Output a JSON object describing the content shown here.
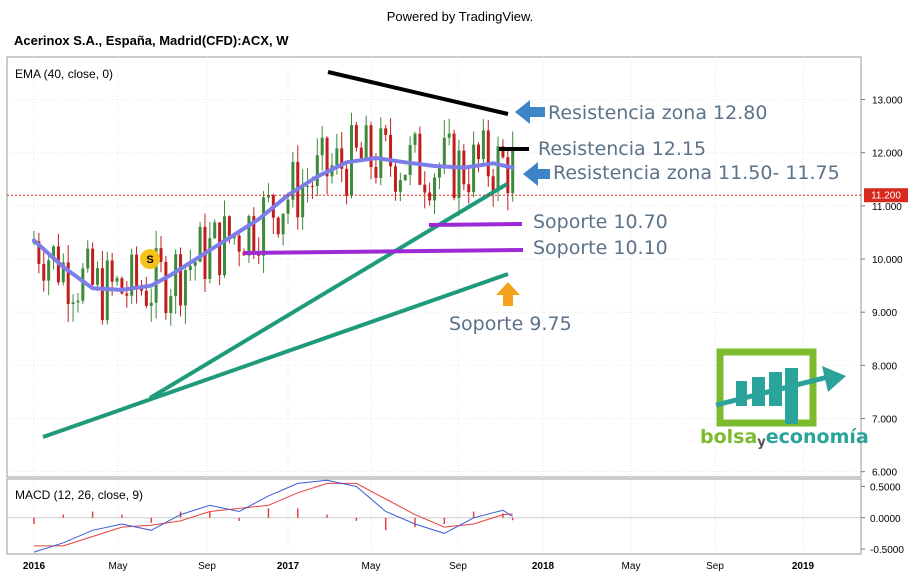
{
  "header": {
    "powered_by": "Powered by TradingView.",
    "symbol_title": "Acerinox S.A., España, Madrid(CFD):ACX, W"
  },
  "colors": {
    "ema": "#7d7de8",
    "candle_up": "#3c8a3c",
    "candle_down": "#c21d1d",
    "trendline_support": "#1f9a7a",
    "resistance_line": "#000000",
    "support_line": "#9b2ad6",
    "annotation_text": "#5b7288",
    "annotation_arrow": "#3d85c8",
    "arrow_up": "#f5a11c",
    "price_badge": "#d8291f",
    "macd_line": "#3b5bd6",
    "signal_line": "#e84040"
  },
  "chart_data": [
    {
      "type": "candlestick",
      "title": "",
      "indicator_label": "EMA (40, close, 0)",
      "x_ticks": [
        "2016",
        "May",
        "Sep",
        "2017",
        "May",
        "Sep",
        "2018",
        "May",
        "Sep",
        "2019"
      ],
      "y_ticks": [
        "13.000",
        "12.000",
        "11.000",
        "10.000",
        "9.000",
        "8.000",
        "7.000",
        "6.000"
      ],
      "ylim": [
        5.9,
        13.8
      ],
      "last_price": "11.200",
      "ema": [
        {
          "date": "2016-01-04",
          "value": 10.35
        },
        {
          "date": "2016-02-15",
          "value": 9.85
        },
        {
          "date": "2016-03-28",
          "value": 9.45
        },
        {
          "date": "2016-05-09",
          "value": 9.42
        },
        {
          "date": "2016-06-20",
          "value": 9.5
        },
        {
          "date": "2016-07-18",
          "value": 9.7
        },
        {
          "date": "2016-08-29",
          "value": 10.05
        },
        {
          "date": "2016-10-10",
          "value": 10.4
        },
        {
          "date": "2016-11-21",
          "value": 10.75
        },
        {
          "date": "2017-01-02",
          "value": 11.2
        },
        {
          "date": "2017-02-13",
          "value": 11.55
        },
        {
          "date": "2017-03-27",
          "value": 11.82
        },
        {
          "date": "2017-05-08",
          "value": 11.9
        },
        {
          "date": "2017-06-19",
          "value": 11.82
        },
        {
          "date": "2017-07-31",
          "value": 11.75
        },
        {
          "date": "2017-09-11",
          "value": 11.72
        },
        {
          "date": "2017-10-23",
          "value": 11.8
        },
        {
          "date": "2017-11-20",
          "value": 11.72
        }
      ],
      "annotations": [
        {
          "label": "Resistencia zona 12.80",
          "value": 12.8
        },
        {
          "label": "Resistencia 12.15",
          "value": 12.15
        },
        {
          "label": "Resistencia zona 11.50- 11.75",
          "value": 11.75
        },
        {
          "label": "Soporte 10.70",
          "value": 10.7
        },
        {
          "label": "Soporte 10.10",
          "value": 10.1
        },
        {
          "label": "Soporte 9.75",
          "value": 9.75
        }
      ],
      "signal_marker": "S",
      "watermark_text": [
        "bolsa",
        "y",
        "economía"
      ]
    },
    {
      "type": "line",
      "title": "",
      "indicator_label": "MACD (12, 26, close, 9)",
      "y_ticks": [
        "0.5000",
        "0.0000",
        "-0.5000"
      ],
      "ylim": [
        -0.58,
        0.62
      ],
      "series": [
        {
          "name": "MACD",
          "values": [
            {
              "date": "2016-01-04",
              "value": -0.55
            },
            {
              "date": "2016-02-15",
              "value": -0.4
            },
            {
              "date": "2016-03-28",
              "value": -0.2
            },
            {
              "date": "2016-05-09",
              "value": -0.1
            },
            {
              "date": "2016-06-20",
              "value": -0.2
            },
            {
              "date": "2016-08-01",
              "value": 0.05
            },
            {
              "date": "2016-09-12",
              "value": 0.2
            },
            {
              "date": "2016-10-24",
              "value": 0.1
            },
            {
              "date": "2016-12-05",
              "value": 0.35
            },
            {
              "date": "2017-01-16",
              "value": 0.55
            },
            {
              "date": "2017-02-27",
              "value": 0.6
            },
            {
              "date": "2017-04-10",
              "value": 0.5
            },
            {
              "date": "2017-05-22",
              "value": 0.1
            },
            {
              "date": "2017-07-03",
              "value": -0.1
            },
            {
              "date": "2017-08-14",
              "value": -0.25
            },
            {
              "date": "2017-09-25",
              "value": 0.0
            },
            {
              "date": "2017-11-06",
              "value": 0.12
            },
            {
              "date": "2017-11-20",
              "value": 0.02
            }
          ]
        },
        {
          "name": "Signal",
          "values": [
            {
              "date": "2016-01-04",
              "value": -0.45
            },
            {
              "date": "2016-02-15",
              "value": -0.45
            },
            {
              "date": "2016-03-28",
              "value": -0.3
            },
            {
              "date": "2016-05-09",
              "value": -0.15
            },
            {
              "date": "2016-06-20",
              "value": -0.12
            },
            {
              "date": "2016-08-01",
              "value": -0.05
            },
            {
              "date": "2016-09-12",
              "value": 0.1
            },
            {
              "date": "2016-10-24",
              "value": 0.15
            },
            {
              "date": "2016-12-05",
              "value": 0.2
            },
            {
              "date": "2017-01-16",
              "value": 0.4
            },
            {
              "date": "2017-02-27",
              "value": 0.55
            },
            {
              "date": "2017-04-10",
              "value": 0.55
            },
            {
              "date": "2017-05-22",
              "value": 0.3
            },
            {
              "date": "2017-07-03",
              "value": 0.05
            },
            {
              "date": "2017-08-14",
              "value": -0.15
            },
            {
              "date": "2017-09-25",
              "value": -0.1
            },
            {
              "date": "2017-11-06",
              "value": 0.05
            },
            {
              "date": "2017-11-20",
              "value": 0.06
            }
          ]
        }
      ],
      "histogram": [
        {
          "date": "2016-01-04",
          "value": -0.1
        },
        {
          "date": "2016-02-15",
          "value": 0.05
        },
        {
          "date": "2016-03-28",
          "value": 0.1
        },
        {
          "date": "2016-05-09",
          "value": 0.05
        },
        {
          "date": "2016-06-20",
          "value": -0.08
        },
        {
          "date": "2016-08-01",
          "value": 0.1
        },
        {
          "date": "2016-09-12",
          "value": 0.1
        },
        {
          "date": "2016-10-24",
          "value": -0.05
        },
        {
          "date": "2016-12-05",
          "value": 0.15
        },
        {
          "date": "2017-01-16",
          "value": 0.15
        },
        {
          "date": "2017-02-27",
          "value": 0.05
        },
        {
          "date": "2017-04-10",
          "value": -0.05
        },
        {
          "date": "2017-05-22",
          "value": -0.2
        },
        {
          "date": "2017-07-03",
          "value": -0.15
        },
        {
          "date": "2017-08-14",
          "value": -0.1
        },
        {
          "date": "2017-09-25",
          "value": 0.1
        },
        {
          "date": "2017-11-06",
          "value": 0.07
        },
        {
          "date": "2017-11-20",
          "value": -0.04
        }
      ]
    }
  ]
}
